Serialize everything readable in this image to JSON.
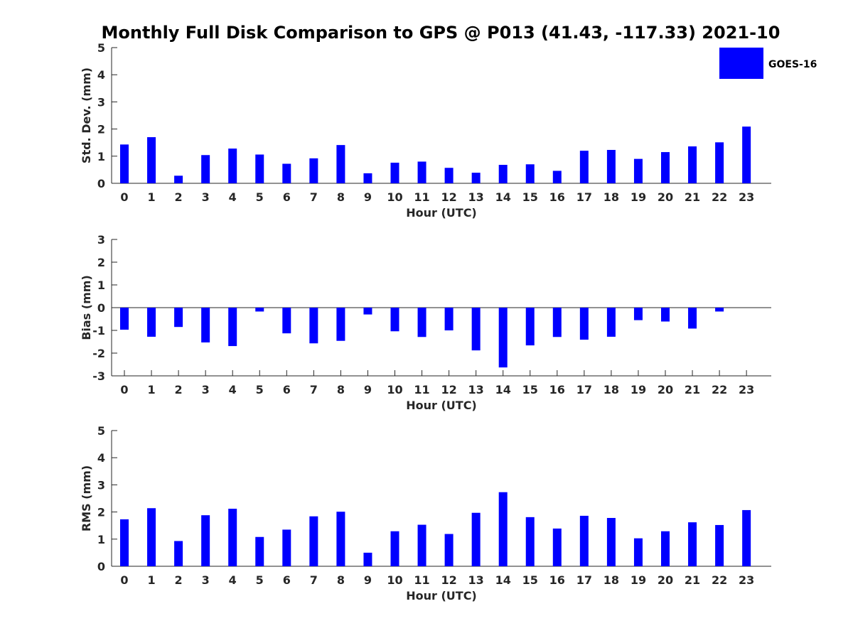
{
  "title": "Monthly Full Disk Comparison to GPS @ P013 (41.43, -117.33) 2021-10",
  "legend": {
    "label": "GOES-16",
    "color": "#0000ff",
    "placement": "top-right"
  },
  "chart_data": [
    {
      "type": "bar",
      "categories": [
        "0",
        "1",
        "2",
        "3",
        "4",
        "5",
        "6",
        "7",
        "8",
        "9",
        "10",
        "11",
        "12",
        "13",
        "14",
        "15",
        "16",
        "17",
        "18",
        "19",
        "20",
        "21",
        "22",
        "23"
      ],
      "series": [
        {
          "name": "GOES-16",
          "values": [
            1.43,
            1.7,
            0.28,
            1.04,
            1.28,
            1.06,
            0.72,
            0.92,
            1.41,
            0.37,
            0.76,
            0.8,
            0.57,
            0.39,
            0.68,
            0.7,
            0.46,
            1.2,
            1.23,
            0.9,
            1.15,
            1.36,
            1.51,
            2.09
          ]
        }
      ],
      "xlabel": "Hour (UTC)",
      "ylabel": "Std. Dev. (mm)",
      "ylim": [
        0,
        5
      ],
      "yticks": [
        "0",
        "1",
        "2",
        "3",
        "4",
        "5"
      ],
      "grid": false
    },
    {
      "type": "bar",
      "categories": [
        "0",
        "1",
        "2",
        "3",
        "4",
        "5",
        "6",
        "7",
        "8",
        "9",
        "10",
        "11",
        "12",
        "13",
        "14",
        "15",
        "16",
        "17",
        "18",
        "19",
        "20",
        "21",
        "22",
        "23"
      ],
      "series": [
        {
          "name": "GOES-16",
          "values": [
            -0.97,
            -1.28,
            -0.85,
            -1.53,
            -1.69,
            -0.17,
            -1.13,
            -1.57,
            -1.46,
            -0.3,
            -1.04,
            -1.29,
            -1.0,
            -1.88,
            -2.63,
            -1.66,
            -1.29,
            -1.41,
            -1.28,
            -0.55,
            -0.61,
            -0.92,
            -0.17,
            0.0
          ]
        }
      ],
      "xlabel": "Hour (UTC)",
      "ylabel": "Bias (mm)",
      "ylim": [
        -3,
        3
      ],
      "yticks": [
        "-3",
        "-2",
        "-1",
        "0",
        "1",
        "2",
        "3"
      ],
      "grid": false
    },
    {
      "type": "bar",
      "categories": [
        "0",
        "1",
        "2",
        "3",
        "4",
        "5",
        "6",
        "7",
        "8",
        "9",
        "10",
        "11",
        "12",
        "13",
        "14",
        "15",
        "16",
        "17",
        "18",
        "19",
        "20",
        "21",
        "22",
        "23"
      ],
      "series": [
        {
          "name": "GOES-16",
          "values": [
            1.73,
            2.14,
            0.93,
            1.88,
            2.12,
            1.08,
            1.35,
            1.84,
            2.01,
            0.5,
            1.29,
            1.53,
            1.19,
            1.97,
            2.73,
            1.81,
            1.39,
            1.86,
            1.78,
            1.03,
            1.29,
            1.62,
            1.52,
            2.07
          ]
        }
      ],
      "xlabel": "Hour (UTC)",
      "ylabel": "RMS (mm)",
      "ylim": [
        0,
        5
      ],
      "yticks": [
        "0",
        "1",
        "2",
        "3",
        "4",
        "5"
      ],
      "grid": false
    }
  ]
}
